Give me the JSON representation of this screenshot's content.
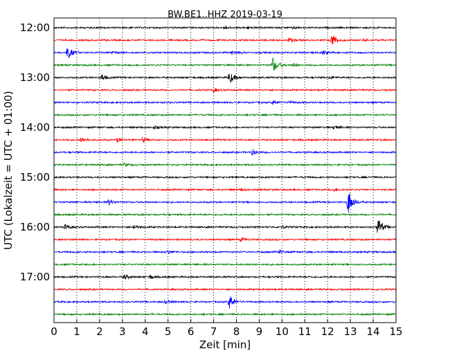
{
  "chart_data": {
    "type": "line",
    "title": "BW.BE1..HHZ 2019-03-19",
    "xlabel": "Zeit  [min]",
    "ylabel": "UTC (Lokalzeit = UTC + 01:00)",
    "xlim": [
      0,
      15
    ],
    "x_ticks": [
      "0",
      "1",
      "2",
      "3",
      "4",
      "5",
      "6",
      "7",
      "8",
      "9",
      "10",
      "11",
      "12",
      "13",
      "14",
      "15"
    ],
    "y_tick_labels": [
      "12:00",
      "13:00",
      "14:00",
      "15:00",
      "16:00",
      "17:00"
    ],
    "grid": "vertical dotted",
    "color_cycle": [
      "#000000",
      "#ff0000",
      "#0000ff",
      "#008000"
    ],
    "rows": [
      {
        "time": "12:00",
        "events": [
          [
            7.5,
            0.3
          ],
          [
            8.5,
            0.3
          ],
          [
            10.5,
            0.3
          ]
        ]
      },
      {
        "time": "12:15",
        "events": [
          [
            10.3,
            0.5
          ],
          [
            12.2,
            1.6
          ],
          [
            13.6,
            0.3
          ]
        ]
      },
      {
        "time": "12:30",
        "events": [
          [
            0.6,
            1.6
          ],
          [
            2.5,
            0.3
          ],
          [
            7.8,
            0.4
          ],
          [
            11.8,
            0.5
          ]
        ]
      },
      {
        "time": "12:45",
        "events": [
          [
            9.6,
            1.9
          ],
          [
            10.5,
            0.4
          ]
        ]
      },
      {
        "time": "13:00",
        "events": [
          [
            2.1,
            0.8
          ],
          [
            7.7,
            1.5
          ],
          [
            12.1,
            0.3
          ]
        ]
      },
      {
        "time": "13:15",
        "events": [
          [
            7.0,
            0.4
          ]
        ]
      },
      {
        "time": "13:30",
        "events": [
          [
            9.6,
            0.5
          ],
          [
            10.3,
            0.3
          ]
        ]
      },
      {
        "time": "13:45",
        "events": []
      },
      {
        "time": "14:00",
        "events": [
          [
            4.4,
            0.3
          ],
          [
            12.3,
            0.5
          ]
        ]
      },
      {
        "time": "14:15",
        "events": [
          [
            1.2,
            0.6
          ],
          [
            2.8,
            0.5
          ],
          [
            3.9,
            0.5
          ]
        ]
      },
      {
        "time": "14:30",
        "events": [
          [
            8.7,
            0.6
          ]
        ]
      },
      {
        "time": "14:45",
        "events": [
          [
            3.1,
            0.3
          ]
        ]
      },
      {
        "time": "15:00",
        "events": [
          [
            15.0,
            0.3
          ]
        ]
      },
      {
        "time": "15:15",
        "events": [
          [
            8.2,
            0.3
          ],
          [
            12.3,
            0.4
          ]
        ]
      },
      {
        "time": "15:30",
        "events": [
          [
            2.4,
            0.7
          ],
          [
            12.9,
            3.1
          ]
        ]
      },
      {
        "time": "15:45",
        "events": []
      },
      {
        "time": "16:00",
        "events": [
          [
            0.5,
            0.6
          ],
          [
            3.5,
            0.5
          ],
          [
            10.0,
            0.3
          ],
          [
            14.2,
            2.4
          ]
        ]
      },
      {
        "time": "16:15",
        "events": [
          [
            8.2,
            0.4
          ]
        ]
      },
      {
        "time": "16:30",
        "events": [
          [
            5.0,
            0.4
          ],
          [
            9.9,
            0.4
          ]
        ]
      },
      {
        "time": "16:45",
        "events": []
      },
      {
        "time": "17:00",
        "events": [
          [
            3.1,
            0.6
          ],
          [
            4.2,
            0.5
          ]
        ]
      },
      {
        "time": "17:15",
        "events": []
      },
      {
        "time": "17:30",
        "events": [
          [
            4.9,
            0.4
          ],
          [
            7.7,
            1.8
          ]
        ]
      },
      {
        "time": "17:45",
        "events": []
      }
    ]
  }
}
